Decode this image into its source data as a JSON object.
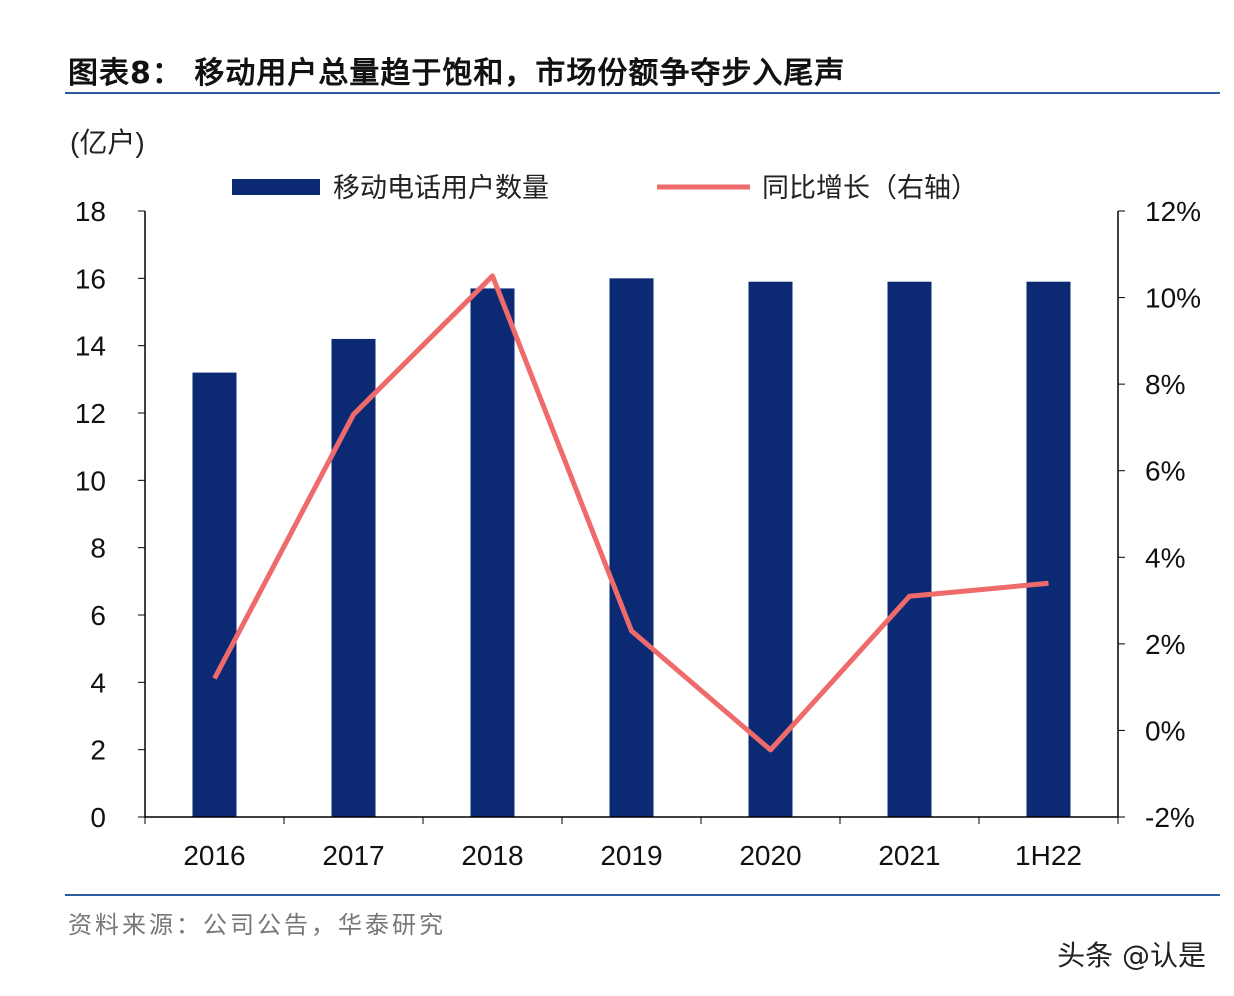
{
  "title": "图表8：  移动用户总量趋于饱和，市场份额争夺步入尾声",
  "source": "资料来源：公司公告，华泰研究",
  "watermark": "头条 @认是",
  "chart_data": {
    "type": "bar",
    "title": "图表8：  移动用户总量趋于饱和，市场份额争夺步入尾声",
    "ylabel": "(亿户)",
    "categories": [
      "2016",
      "2017",
      "2018",
      "2019",
      "2020",
      "2021",
      "1H22"
    ],
    "ylim": [
      0,
      18
    ],
    "yticks": [
      "0",
      "2",
      "4",
      "6",
      "8",
      "10",
      "12",
      "14",
      "16",
      "18"
    ],
    "y2lim": [
      -2,
      12
    ],
    "y2ticks": [
      "-2%",
      "0%",
      "2%",
      "4%",
      "6%",
      "8%",
      "10%",
      "12%"
    ],
    "legend_position": "top",
    "grid": false,
    "series": [
      {
        "name": "移动电话用户数量",
        "type": "bar",
        "axis": "left",
        "color": "#0b2a73",
        "values": [
          13.2,
          14.2,
          15.7,
          16.0,
          15.9,
          15.9,
          15.9
        ]
      },
      {
        "name": "同比增长（右轴）",
        "type": "line",
        "axis": "right",
        "color": "#ef6b6b",
        "values": [
          1.2,
          7.3,
          10.5,
          2.3,
          -0.45,
          3.1,
          3.4
        ]
      }
    ]
  }
}
